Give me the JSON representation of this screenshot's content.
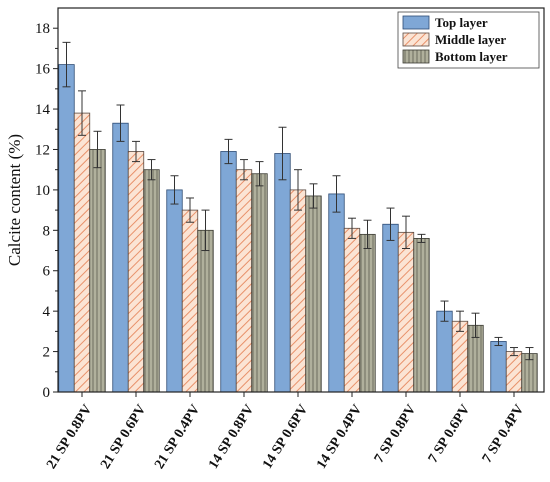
{
  "chart_data": {
    "type": "bar",
    "title": "",
    "xlabel": "",
    "ylabel": "Calcite content (%)",
    "ylim": [
      0,
      19
    ],
    "yticks": [
      0,
      2,
      4,
      6,
      8,
      10,
      12,
      14,
      16,
      18
    ],
    "categories": [
      "21 SP 0.8PV",
      "21 SP 0.6PV",
      "21 SP 0.4PV",
      "14 SP 0.8PV",
      "14 SP 0.6PV",
      "14 SP 0.4PV",
      "7 SP 0.8PV",
      "7 SP 0.6PV",
      "7 SP 0.4PV"
    ],
    "series": [
      {
        "name": "Top layer",
        "color": "#7fa7d6",
        "pattern": "solid",
        "values": [
          16.2,
          13.3,
          10.0,
          11.9,
          11.8,
          9.8,
          8.3,
          4.0,
          2.5
        ],
        "errors": [
          1.1,
          0.9,
          0.7,
          0.6,
          1.3,
          0.9,
          0.8,
          0.5,
          0.2
        ]
      },
      {
        "name": "Middle layer",
        "color": "#f4b896",
        "pattern": "diagonal-hatch",
        "values": [
          13.8,
          11.9,
          9.0,
          11.0,
          10.0,
          8.1,
          7.9,
          3.5,
          2.0
        ],
        "errors": [
          1.1,
          0.5,
          0.6,
          0.5,
          1.0,
          0.5,
          0.8,
          0.5,
          0.2
        ]
      },
      {
        "name": "Bottom layer",
        "color": "#b0b09c",
        "pattern": "vertical-lines",
        "values": [
          12.0,
          11.0,
          8.0,
          10.8,
          9.7,
          7.8,
          7.6,
          3.3,
          1.9
        ],
        "errors": [
          0.9,
          0.5,
          1.0,
          0.6,
          0.6,
          0.7,
          0.2,
          0.6,
          0.3
        ]
      }
    ],
    "grid": false,
    "legend": "top-right"
  }
}
